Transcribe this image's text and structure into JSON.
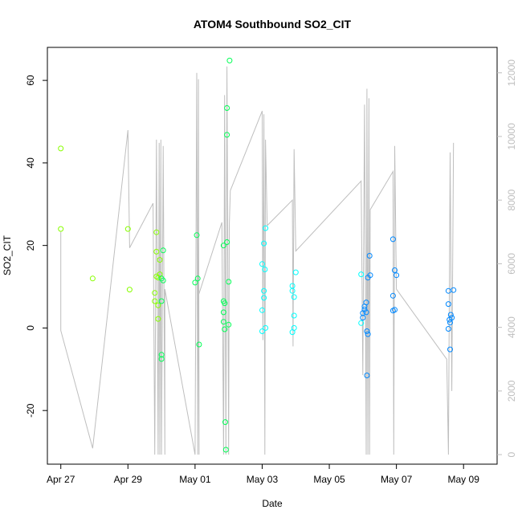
{
  "chart_data": {
    "type": "scatter",
    "title": "ATOM4 Southbound SO2_CIT",
    "xlabel": "Date",
    "ylabel": "SO2_CIT",
    "x_ticks": [
      "Apr 27",
      "Apr 29",
      "May 01",
      "May 03",
      "May 05",
      "May 07",
      "May 09"
    ],
    "y_ticks": [
      -20,
      0,
      20,
      40,
      60
    ],
    "y2_ticks": [
      0,
      2000,
      4000,
      6000,
      8000,
      10000,
      12000
    ],
    "xlim_days": [
      -0.4,
      13.0
    ],
    "ylim": [
      -33,
      68
    ],
    "y2lim": [
      -300,
      12800
    ],
    "grid": false,
    "legend": "none",
    "point_colors": [
      "#88ff00",
      "#00ff55",
      "#00ffff",
      "#0088ff"
    ],
    "line_color": "#bebebe",
    "points": [
      {
        "x": 0.0,
        "y": 43.5
      },
      {
        "x": 0.0,
        "y": 24.0
      },
      {
        "x": 0.95,
        "y": 12.0
      },
      {
        "x": 2.0,
        "y": 24.0
      },
      {
        "x": 2.05,
        "y": 9.3
      },
      {
        "x": 2.85,
        "y": 23.2
      },
      {
        "x": 2.8,
        "y": 8.5
      },
      {
        "x": 2.8,
        "y": 6.5
      },
      {
        "x": 2.85,
        "y": 18.5
      },
      {
        "x": 2.85,
        "y": 12.5
      },
      {
        "x": 2.9,
        "y": 12.2
      },
      {
        "x": 2.9,
        "y": 5.5
      },
      {
        "x": 2.95,
        "y": 16.5
      },
      {
        "x": 2.95,
        "y": 13.0
      },
      {
        "x": 2.9,
        "y": 2.2
      },
      {
        "x": 3.0,
        "y": 12.0
      },
      {
        "x": 3.0,
        "y": 6.5
      },
      {
        "x": 3.05,
        "y": 18.8
      },
      {
        "x": 3.05,
        "y": 11.5
      },
      {
        "x": 3.0,
        "y": -6.5
      },
      {
        "x": 3.0,
        "y": -7.5
      },
      {
        "x": 4.05,
        "y": 22.5
      },
      {
        "x": 4.0,
        "y": 11.0
      },
      {
        "x": 4.08,
        "y": 12.0
      },
      {
        "x": 4.12,
        "y": -4.0
      },
      {
        "x": 4.85,
        "y": 20.0
      },
      {
        "x": 4.85,
        "y": 6.5
      },
      {
        "x": 4.85,
        "y": 3.8
      },
      {
        "x": 4.85,
        "y": 1.5
      },
      {
        "x": 4.88,
        "y": -0.3
      },
      {
        "x": 4.88,
        "y": 6.0
      },
      {
        "x": 4.9,
        "y": -22.8
      },
      {
        "x": 4.92,
        "y": -29.5
      },
      {
        "x": 4.95,
        "y": 20.8
      },
      {
        "x": 4.95,
        "y": 53.3
      },
      {
        "x": 4.95,
        "y": 46.8
      },
      {
        "x": 5.0,
        "y": 11.2
      },
      {
        "x": 5.0,
        "y": 0.8
      },
      {
        "x": 5.03,
        "y": 64.8
      },
      {
        "x": 6.0,
        "y": 15.5
      },
      {
        "x": 6.05,
        "y": 20.5
      },
      {
        "x": 6.1,
        "y": 24.2
      },
      {
        "x": 6.08,
        "y": 14.2
      },
      {
        "x": 6.05,
        "y": 9.0
      },
      {
        "x": 6.0,
        "y": 4.3
      },
      {
        "x": 6.05,
        "y": 7.3
      },
      {
        "x": 6.1,
        "y": 0.0
      },
      {
        "x": 6.0,
        "y": -0.8
      },
      {
        "x": 6.9,
        "y": 10.2
      },
      {
        "x": 6.9,
        "y": 9.0
      },
      {
        "x": 6.95,
        "y": 7.5
      },
      {
        "x": 6.95,
        "y": 3.0
      },
      {
        "x": 6.95,
        "y": 0.0
      },
      {
        "x": 6.9,
        "y": -1.0
      },
      {
        "x": 7.0,
        "y": 13.5
      },
      {
        "x": 8.95,
        "y": 13.0
      },
      {
        "x": 9.0,
        "y": 3.6
      },
      {
        "x": 8.95,
        "y": 1.2
      },
      {
        "x": 9.05,
        "y": 4.5
      },
      {
        "x": 9.05,
        "y": 5.2
      },
      {
        "x": 9.1,
        "y": 6.2
      },
      {
        "x": 9.1,
        "y": 3.8
      },
      {
        "x": 9.12,
        "y": -0.8
      },
      {
        "x": 9.15,
        "y": -1.5
      },
      {
        "x": 9.12,
        "y": -11.5
      },
      {
        "x": 9.15,
        "y": 12.2
      },
      {
        "x": 9.2,
        "y": 17.5
      },
      {
        "x": 9.22,
        "y": 12.8
      },
      {
        "x": 9.0,
        "y": 2.5
      },
      {
        "x": 9.9,
        "y": 21.5
      },
      {
        "x": 9.95,
        "y": 14.0
      },
      {
        "x": 10.0,
        "y": 12.8
      },
      {
        "x": 9.9,
        "y": 7.8
      },
      {
        "x": 9.9,
        "y": 4.2
      },
      {
        "x": 9.95,
        "y": 4.4
      },
      {
        "x": 11.55,
        "y": 9.0
      },
      {
        "x": 11.7,
        "y": 9.2
      },
      {
        "x": 11.55,
        "y": 5.8
      },
      {
        "x": 11.62,
        "y": 3.2
      },
      {
        "x": 11.58,
        "y": 2.0
      },
      {
        "x": 11.6,
        "y": 1.3
      },
      {
        "x": 11.65,
        "y": 2.5
      },
      {
        "x": 11.55,
        "y": -0.2
      },
      {
        "x": 11.6,
        "y": -5.2
      }
    ],
    "secondary_line": [
      [
        0.0,
        7000
      ],
      [
        0.0,
        3900
      ],
      [
        0.95,
        200
      ],
      [
        2.0,
        10200
      ],
      [
        2.05,
        6500
      ],
      [
        2.75,
        7900
      ],
      [
        2.8,
        0
      ],
      [
        2.85,
        9900
      ],
      [
        2.9,
        0
      ],
      [
        2.93,
        9800
      ],
      [
        2.95,
        0
      ],
      [
        2.98,
        9900
      ],
      [
        3.0,
        0
      ],
      [
        3.05,
        9700
      ],
      [
        3.1,
        0
      ],
      [
        3.1,
        5200
      ],
      [
        4.0,
        0
      ],
      [
        4.05,
        12000
      ],
      [
        4.08,
        0
      ],
      [
        4.1,
        11800
      ],
      [
        4.12,
        0
      ],
      [
        4.1,
        5000
      ],
      [
        4.8,
        7300
      ],
      [
        4.85,
        0
      ],
      [
        4.88,
        11300
      ],
      [
        4.92,
        0
      ],
      [
        4.95,
        12200
      ],
      [
        5.0,
        0
      ],
      [
        5.02,
        7200
      ],
      [
        5.05,
        8300
      ],
      [
        6.0,
        10800
      ],
      [
        6.02,
        3600
      ],
      [
        6.05,
        10700
      ],
      [
        6.08,
        0
      ],
      [
        6.1,
        9900
      ],
      [
        6.15,
        7200
      ],
      [
        6.9,
        8000
      ],
      [
        6.92,
        3400
      ],
      [
        6.95,
        9600
      ],
      [
        7.0,
        6400
      ],
      [
        8.95,
        8600
      ],
      [
        9.0,
        2500
      ],
      [
        9.05,
        11000
      ],
      [
        9.1,
        0
      ],
      [
        9.12,
        11500
      ],
      [
        9.15,
        0
      ],
      [
        9.18,
        11200
      ],
      [
        9.2,
        0
      ],
      [
        9.22,
        7700
      ],
      [
        9.9,
        8900
      ],
      [
        9.92,
        0
      ],
      [
        9.95,
        9700
      ],
      [
        10.0,
        5200
      ],
      [
        11.5,
        3000
      ],
      [
        11.55,
        0
      ],
      [
        11.6,
        9500
      ],
      [
        11.65,
        2000
      ],
      [
        11.7,
        9800
      ]
    ]
  }
}
